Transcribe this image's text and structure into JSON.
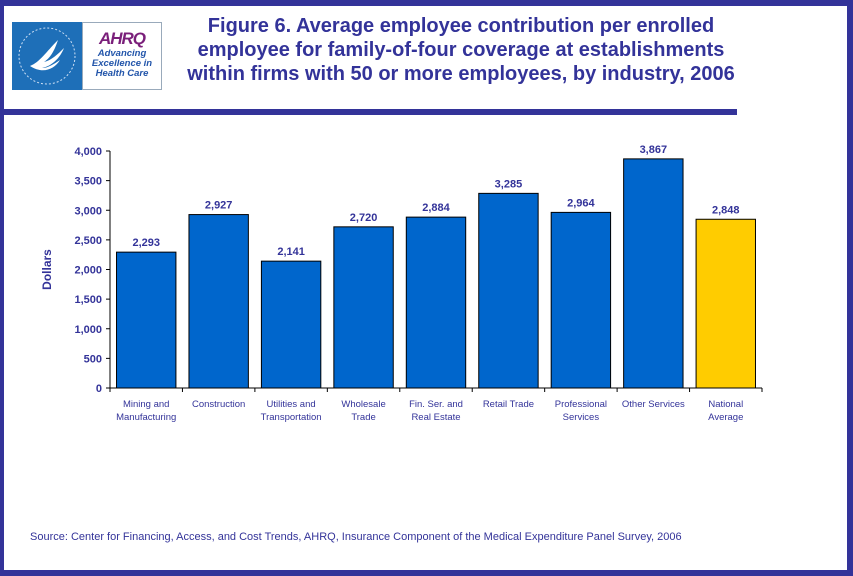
{
  "header": {
    "logo_hhs_alt": "Department of Health & Human Services USA",
    "logo_ahrq_mark": "AHRQ",
    "logo_ahrq_tagline": [
      "Advancing",
      "Excellence in",
      "Health Care"
    ],
    "title_lines": [
      "Figure 6. Average employee contribution per enrolled",
      "employee for family-of-four coverage at establishments",
      "within firms with 50 or more employees, by industry, 2006"
    ]
  },
  "colors": {
    "frame": "#333399",
    "bar_default": "#0066cc",
    "bar_highlight": "#ffcc00",
    "text": "#333399"
  },
  "chart_data": {
    "type": "bar",
    "title": "Figure 6. Average employee contribution per enrolled employee for family-of-four coverage at establishments within firms with 50 or more employees, by industry, 2006",
    "xlabel": "",
    "ylabel": "Dollars",
    "ylim": [
      0,
      4000
    ],
    "yticks": [
      0,
      500,
      1000,
      1500,
      2000,
      2500,
      3000,
      3500,
      4000
    ],
    "ytick_labels": [
      "0",
      "500",
      "1,000",
      "1,500",
      "2,000",
      "2,500",
      "3,000",
      "3,500",
      "4,000"
    ],
    "grid": false,
    "categories": [
      [
        "Mining and",
        "Manufacturing"
      ],
      [
        "Construction"
      ],
      [
        "Utilities and",
        "Transportation"
      ],
      [
        "Wholesale",
        "Trade"
      ],
      [
        "Fin. Ser. and",
        "Real Estate"
      ],
      [
        "Retail Trade"
      ],
      [
        "Professional",
        "Services"
      ],
      [
        "Other Services"
      ],
      [
        "National",
        "Average"
      ]
    ],
    "values": [
      2293,
      2927,
      2141,
      2720,
      2884,
      3285,
      2964,
      3867,
      2848
    ],
    "value_labels": [
      "2,293",
      "2,927",
      "2,141",
      "2,720",
      "2,884",
      "3,285",
      "2,964",
      "3,867",
      "2,848"
    ],
    "highlight_index": 8
  },
  "footer": {
    "source": "Source: Center for Financing, Access, and Cost Trends, AHRQ, Insurance Component of the Medical Expenditure Panel Survey, 2006"
  }
}
